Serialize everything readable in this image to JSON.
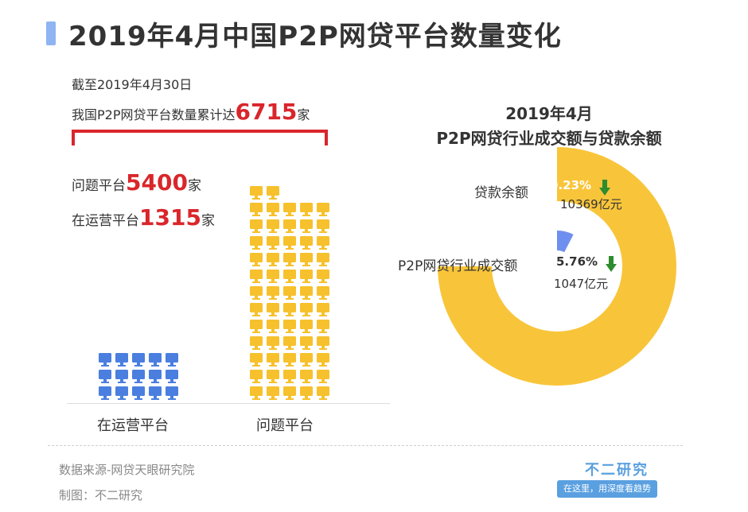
{
  "title": "2019年4月中国P2P网贷平台数量变化",
  "summary": {
    "date_line": "截至2019年4月30日",
    "total_prefix": "我国P2P网贷平台数量累计达",
    "total_value": "6715",
    "unit": "家"
  },
  "left_legend": {
    "problem_prefix": "问题平台",
    "problem_value": "5400",
    "operating_prefix": "在运营平台",
    "operating_value": "1315",
    "unit": "家"
  },
  "donut": {
    "title_line1": "2019年4月",
    "title_line2": "P2P网贷行业成交额与贷款余额",
    "loan_label": "贷款余额",
    "loan_pct": "0.23%",
    "loan_amount": "10369亿元",
    "trade_label": "P2P网贷行业成交额",
    "trade_pct": "5.76%",
    "trade_amount": "1047亿元"
  },
  "footer": {
    "source": "数据来源-网贷天眼研究院",
    "maker": "制图：不二研究",
    "brand": "不二研究",
    "slogan": "在这里，用深度看趋势"
  },
  "colors": {
    "operating": "#4a7fe0",
    "problem": "#f6c12c",
    "loan_ring": "#f8c53a",
    "trade_ring": "#6f8ff0",
    "red": "#d9262b",
    "pct_loan": "#ffffff",
    "pct_trade": "#333333",
    "arrow": "#2e8b2e"
  },
  "chart_data": [
    {
      "type": "bar",
      "categories": [
        "在运营平台",
        "问题平台"
      ],
      "values": [
        1315,
        5400
      ],
      "total": 6715,
      "unit": "家"
    },
    {
      "type": "pie",
      "labels": [
        "贷款余额",
        "P2P网贷行业成交额"
      ],
      "values": [
        10369,
        1047
      ],
      "unit": "亿元",
      "changes": [
        "0.23%",
        "5.76%"
      ],
      "change_direction": [
        "down",
        "down"
      ]
    }
  ]
}
